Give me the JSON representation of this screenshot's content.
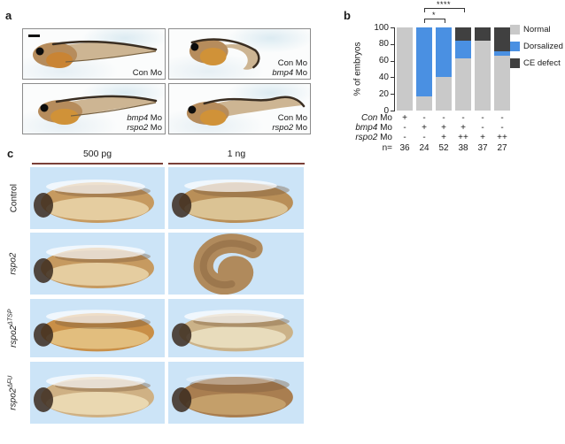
{
  "figure": {
    "panel_a_letter": "a",
    "panel_b_letter": "b",
    "panel_c_letter": "c"
  },
  "colors": {
    "normal": "#c9c9c9",
    "dorsalized": "#4a90e2",
    "ce_defect": "#404040"
  },
  "panel_a": {
    "boxes": [
      {
        "caption_lines": [
          [
            {
              "t": "Con Mo",
              "i": false
            }
          ]
        ]
      },
      {
        "caption_lines": [
          [
            {
              "t": "Con Mo",
              "i": false
            }
          ],
          [
            {
              "t": "bmp4",
              "i": true
            },
            {
              "t": " Mo",
              "i": false
            }
          ]
        ]
      },
      {
        "caption_lines": [
          [
            {
              "t": "bmp4",
              "i": true
            },
            {
              "t": " Mo",
              "i": false
            }
          ],
          [
            {
              "t": "rspo2",
              "i": true
            },
            {
              "t": " Mo",
              "i": false
            }
          ]
        ]
      },
      {
        "caption_lines": [
          [
            {
              "t": "Con Mo",
              "i": false
            }
          ],
          [
            {
              "t": "rspo2",
              "i": true
            },
            {
              "t": " Mo",
              "i": false
            }
          ]
        ]
      }
    ]
  },
  "chart_data": {
    "type": "bar",
    "stacked": true,
    "ylabel": "% of embryos",
    "ylim": [
      0,
      100
    ],
    "yticks": [
      0,
      20,
      40,
      60,
      80,
      100
    ],
    "grid": false,
    "legend_position": "right",
    "series": [
      {
        "name": "Normal",
        "color": "#c9c9c9",
        "values": [
          100,
          17,
          40,
          63,
          84,
          66
        ]
      },
      {
        "name": "Dorsalized",
        "color": "#4a90e2",
        "values": [
          0,
          83,
          60,
          21,
          0,
          5
        ]
      },
      {
        "name": "CE defect",
        "color": "#404040",
        "values": [
          0,
          0,
          0,
          16,
          16,
          29
        ]
      }
    ],
    "conditions": [
      {
        "label": [
          {
            "t": "Con",
            "i": true
          },
          {
            "t": " Mo",
            "i": false
          }
        ],
        "values": [
          "+",
          "-",
          "-",
          "-",
          "-",
          "-"
        ]
      },
      {
        "label": [
          {
            "t": "bmp4",
            "i": true
          },
          {
            "t": " Mo",
            "i": false
          }
        ],
        "values": [
          "-",
          "+",
          "+",
          "+",
          "-",
          "-"
        ]
      },
      {
        "label": [
          {
            "t": "rspo2",
            "i": true
          },
          {
            "t": " Mo",
            "i": false
          }
        ],
        "values": [
          "-",
          "-",
          "+",
          "++",
          "+",
          "++"
        ]
      }
    ],
    "n_label": "n=",
    "n_values": [
      36,
      24,
      52,
      38,
      37,
      27
    ],
    "significance": [
      {
        "from": 1,
        "to": 2,
        "label": "*"
      },
      {
        "from": 1,
        "to": 3,
        "label": "****"
      }
    ]
  },
  "panel_c": {
    "col_headers": [
      "500 pg",
      "1 ng"
    ],
    "rows": [
      {
        "label": [
          {
            "t": "Control",
            "i": false
          }
        ],
        "sup": ""
      },
      {
        "label": [
          {
            "t": "rspo2",
            "i": true
          }
        ],
        "sup": ""
      },
      {
        "label": [
          {
            "t": "rspo2",
            "i": true
          }
        ],
        "sup": "ΔTSP"
      },
      {
        "label": [
          {
            "t": "rspo2",
            "i": true
          }
        ],
        "sup": "ΔFU"
      }
    ]
  }
}
